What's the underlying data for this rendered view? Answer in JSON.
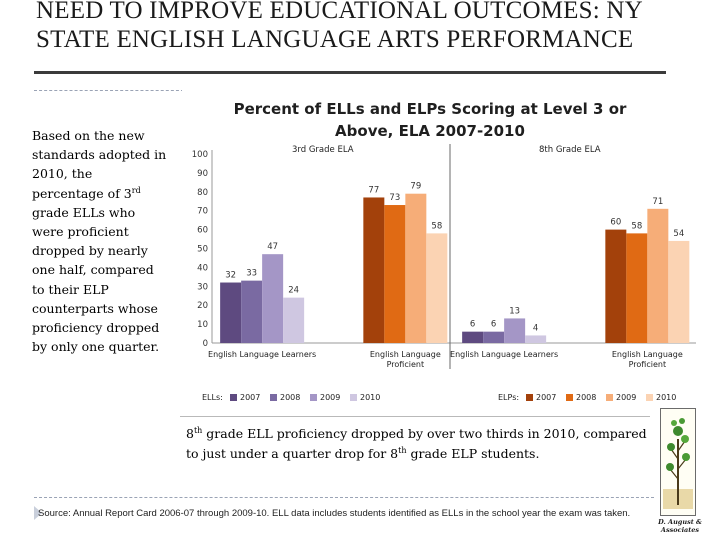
{
  "slide": {
    "title": "NEED TO IMPROVE EDUCATIONAL OUTCOMES: NY STATE ENGLISH LANGUAGE ARTS PERFORMANCE",
    "left_text_html": "Based on the new standards adopted in 2010, the percentage of 3<sup>rd</sup> grade ELLs who were proficient dropped by nearly one half, compared to their ELP counterparts whose proficiency dropped by only one quarter.",
    "bottom_note_html": "8<sup>th</sup> grade ELL proficiency dropped by over two thirds in 2010, compared to just under a quarter drop for 8<sup>th</sup> grade ELP students.",
    "source": "Source: Annual Report Card 2006-07 through 2009-10.  ELL data includes students identified as ELLs in the school year the exam was taken.",
    "logo_text": "D. August & Associates"
  },
  "chart_data": {
    "type": "bar",
    "title_line1": "Percent of ELLs and ELPs Scoring at Level 3 or",
    "title_line2": "Above, ELA 2007-2010",
    "ylim": [
      0,
      100
    ],
    "yticks": [
      0,
      10,
      20,
      30,
      40,
      50,
      60,
      70,
      80,
      90,
      100
    ],
    "panels": [
      {
        "label": "3rd Grade ELA",
        "groups": [
          {
            "category": "English Language Learners",
            "kind": "ELL",
            "values": [
              32,
              33,
              47,
              24
            ]
          },
          {
            "category": "English Language Proficient",
            "kind": "ELP",
            "values": [
              77,
              73,
              79,
              58
            ]
          }
        ]
      },
      {
        "label": "8th Grade ELA",
        "groups": [
          {
            "category": "English Language Learners",
            "kind": "ELL",
            "values": [
              6,
              6,
              13,
              4
            ]
          },
          {
            "category": "English Language Proficient",
            "kind": "ELP",
            "values": [
              60,
              58,
              71,
              54
            ]
          }
        ]
      }
    ],
    "years": [
      "2007",
      "2008",
      "2009",
      "2010"
    ],
    "colors": {
      "ELL": [
        "#5e4a80",
        "#7a6aa2",
        "#a496c6",
        "#cfc7e1"
      ],
      "ELP": [
        "#a3410b",
        "#e06a14",
        "#f6ad78",
        "#fbd3b3"
      ]
    },
    "legend": {
      "ELL_label": "ELLs:",
      "ELP_label": "ELPs:"
    }
  }
}
